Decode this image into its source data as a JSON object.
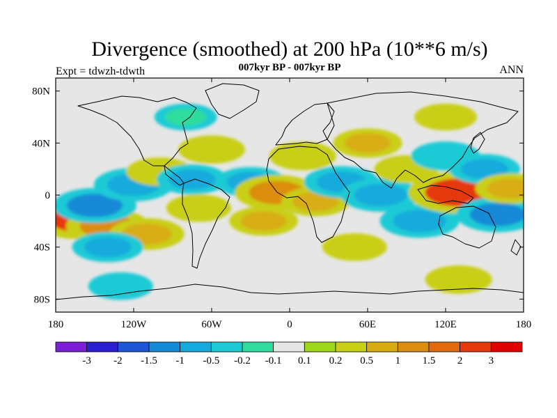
{
  "chart_data": {
    "type": "heatmap",
    "title": "Divergence (smoothed) at 200 hPa (10**6 m/s)",
    "subtitle_left": "Expt = tdwzh-tdwth",
    "subtitle_center": "007kyr BP - 007kyr BP",
    "subtitle_right": "ANN",
    "x_range": [
      -180,
      180
    ],
    "y_range": [
      -90,
      90
    ],
    "xticks": [
      {
        "value": -180,
        "label": "180"
      },
      {
        "value": -120,
        "label": "120W"
      },
      {
        "value": -60,
        "label": "60W"
      },
      {
        "value": 0,
        "label": "0"
      },
      {
        "value": 60,
        "label": "60E"
      },
      {
        "value": 120,
        "label": "120E"
      },
      {
        "value": 180,
        "label": "180"
      }
    ],
    "yticks": [
      {
        "value": 80,
        "label": "80N"
      },
      {
        "value": 40,
        "label": "40N"
      },
      {
        "value": 0,
        "label": "0"
      },
      {
        "value": -40,
        "label": "40S"
      },
      {
        "value": -80,
        "label": "80S"
      }
    ],
    "colorbar": {
      "levels": [
        "-3",
        "-2",
        "-1.5",
        "-1",
        "-0.5",
        "-0.2",
        "-0.1",
        "0.1",
        "0.2",
        "0.5",
        "1",
        "1.5",
        "2",
        "3"
      ],
      "colors": [
        "#7a1fd6",
        "#2b1fd1",
        "#1d55d6",
        "#158ad6",
        "#14aadd",
        "#1ccad5",
        "#2fdc9d",
        "#e6e6e6",
        "#9ed61a",
        "#c9cf12",
        "#d8ad12",
        "#db8d10",
        "#e26a0e",
        "#e5380c",
        "#e00000"
      ]
    },
    "field": [
      {
        "lon": -160,
        "lat": -18,
        "value": 2.0
      },
      {
        "lon": -140,
        "lat": -24,
        "value": 1.2
      },
      {
        "lon": -110,
        "lat": -30,
        "value": 0.8
      },
      {
        "lon": -150,
        "lat": -8,
        "value": -1.2
      },
      {
        "lon": -120,
        "lat": 8,
        "value": -1.0
      },
      {
        "lon": -140,
        "lat": -40,
        "value": -0.6
      },
      {
        "lon": -100,
        "lat": 18,
        "value": 0.4
      },
      {
        "lon": -75,
        "lat": 12,
        "value": -0.6
      },
      {
        "lon": -70,
        "lat": -10,
        "value": 0.3
      },
      {
        "lon": -60,
        "lat": 35,
        "value": 0.4
      },
      {
        "lon": -30,
        "lat": 10,
        "value": -0.6
      },
      {
        "lon": -10,
        "lat": 2,
        "value": 1.2
      },
      {
        "lon": -20,
        "lat": -20,
        "value": 0.5
      },
      {
        "lon": 10,
        "lat": 30,
        "value": 0.4
      },
      {
        "lon": 20,
        "lat": -5,
        "value": 0.5
      },
      {
        "lon": 40,
        "lat": 10,
        "value": -0.8
      },
      {
        "lon": 60,
        "lat": 40,
        "value": 0.5
      },
      {
        "lon": 70,
        "lat": 0,
        "value": -1.0
      },
      {
        "lon": 90,
        "lat": 20,
        "value": 0.3
      },
      {
        "lon": 100,
        "lat": -20,
        "value": -1.0
      },
      {
        "lon": 120,
        "lat": 30,
        "value": -0.5
      },
      {
        "lon": 130,
        "lat": 2,
        "value": 2.0
      },
      {
        "lon": 150,
        "lat": 20,
        "value": -0.6
      },
      {
        "lon": 160,
        "lat": -15,
        "value": -1.2
      },
      {
        "lon": 170,
        "lat": 5,
        "value": 0.6
      },
      {
        "lon": -130,
        "lat": -70,
        "value": -0.3
      },
      {
        "lon": 130,
        "lat": -65,
        "value": 0.4
      },
      {
        "lon": 50,
        "lat": -40,
        "value": 0.3
      },
      {
        "lon": -80,
        "lat": 60,
        "value": -0.2
      },
      {
        "lon": 120,
        "lat": 60,
        "value": 0.2
      }
    ]
  }
}
